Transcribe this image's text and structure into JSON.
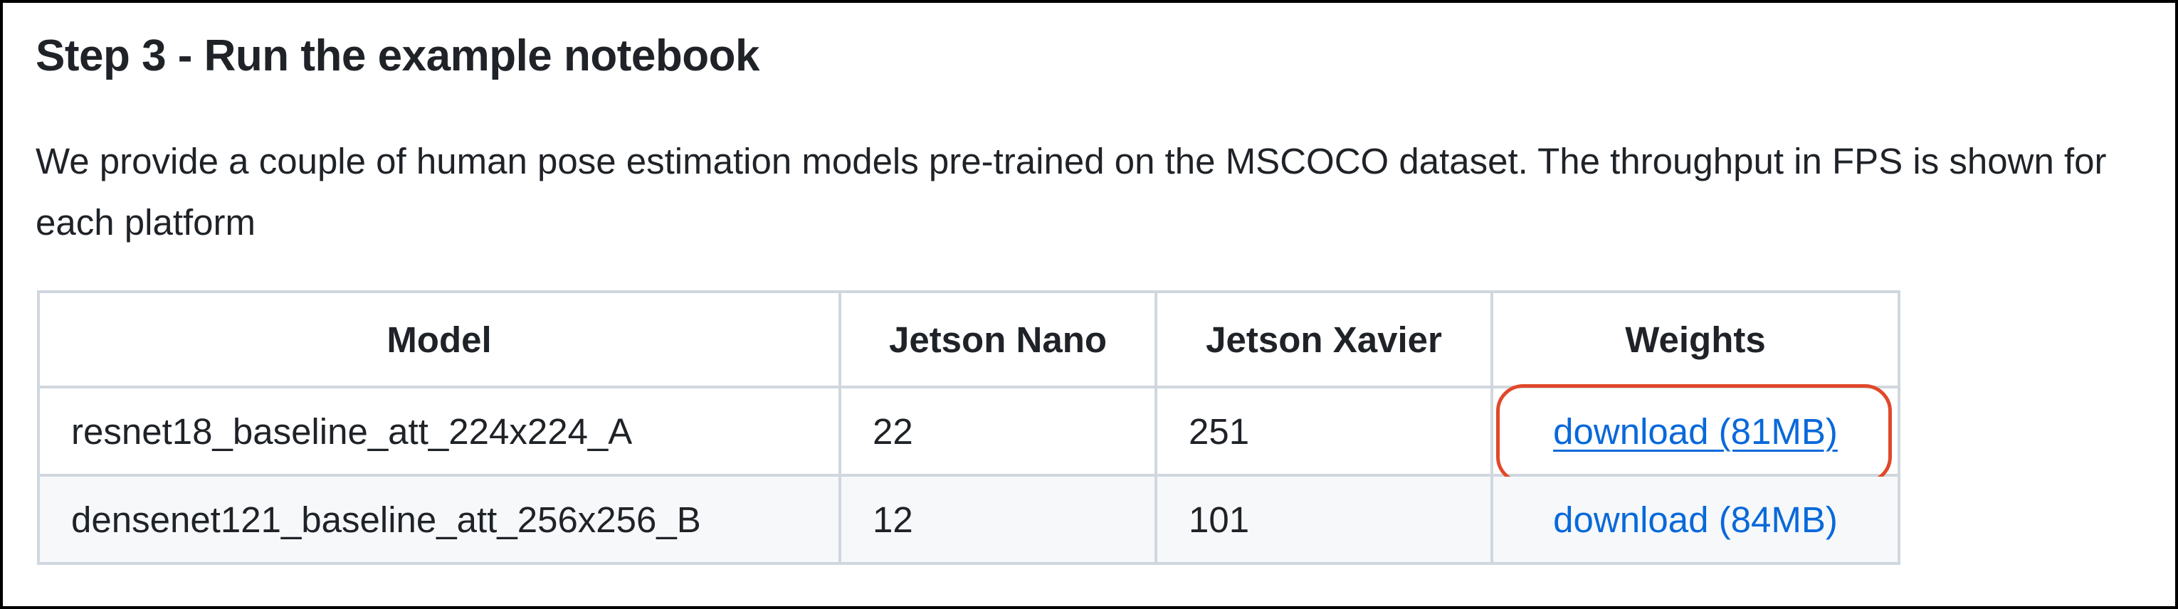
{
  "section": {
    "heading": "Step 3 - Run the example notebook",
    "intro": "We provide a couple of human pose estimation models pre-trained on the MSCOCO dataset. The throughput in FPS is shown for each platform"
  },
  "table": {
    "headers": {
      "model": "Model",
      "nano": "Jetson Nano",
      "xavier": "Jetson Xavier",
      "weights": "Weights"
    },
    "rows": [
      {
        "model": "resnet18_baseline_att_224x224_A",
        "nano": "22",
        "xavier": "251",
        "weights": "download (81MB)"
      },
      {
        "model": "densenet121_baseline_att_256x256_B",
        "nano": "12",
        "xavier": "101",
        "weights": "download (84MB)"
      }
    ]
  },
  "colors": {
    "link": "#0969da",
    "highlight": "#e0482a",
    "border": "#d0d7de",
    "row_alt": "#f6f8fa"
  }
}
